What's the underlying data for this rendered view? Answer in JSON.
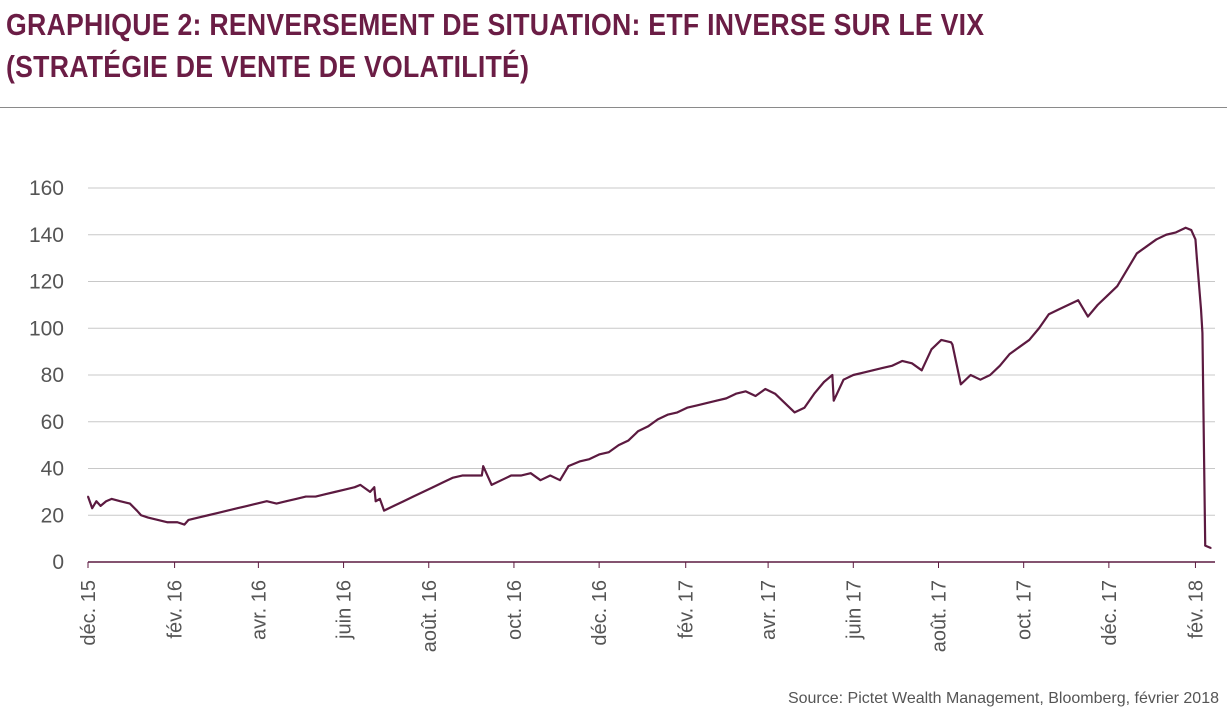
{
  "header": {
    "title_line1": "GRAPHIQUE 2: RENVERSEMENT DE SITUATION: ETF INVERSE SUR LE VIX",
    "title_line2": "(STRATÉGIE DE VENTE DE VOLATILITÉ)"
  },
  "source": "Source: Pictet Wealth Management, Bloomberg, février 2018",
  "colors": {
    "title": "#6b1d45",
    "line": "#5c1a40",
    "grid": "#c8c8c8",
    "text": "#555555"
  },
  "chart_data": {
    "type": "line",
    "title": "GRAPHIQUE 2: RENVERSEMENT DE SITUATION: ETF INVERSE SUR LE VIX (STRATÉGIE DE VENTE DE VOLATILITÉ)",
    "xlabel": "",
    "ylabel": "",
    "ylim": [
      0,
      160
    ],
    "yticks": [
      0,
      20,
      40,
      60,
      80,
      100,
      120,
      140,
      160
    ],
    "xlim": [
      "2015-12-01",
      "2018-02-15"
    ],
    "xtick_labels": [
      "déc. 15",
      "fév. 16",
      "avr. 16",
      "juin 16",
      "août. 16",
      "oct. 16",
      "déc. 16",
      "fév. 17",
      "avr. 17",
      "juin 17",
      "août. 17",
      "oct. 17",
      "déc. 17",
      "fév. 18"
    ],
    "xtick_dates": [
      "2015-12-01",
      "2016-02-01",
      "2016-04-01",
      "2016-06-01",
      "2016-08-01",
      "2016-10-01",
      "2016-12-01",
      "2017-02-01",
      "2017-04-01",
      "2017-06-01",
      "2017-08-01",
      "2017-10-01",
      "2017-12-01",
      "2018-02-01"
    ],
    "grid": "horizontal",
    "series": [
      {
        "x": [
          "2015-12-01",
          "2015-12-04",
          "2015-12-07",
          "2015-12-10",
          "2015-12-14",
          "2015-12-18",
          "2015-12-24",
          "2015-12-31",
          "2016-01-05",
          "2016-01-08",
          "2016-01-13",
          "2016-01-20",
          "2016-01-27",
          "2016-02-03",
          "2016-02-08",
          "2016-02-11",
          "2016-02-18",
          "2016-02-25",
          "2016-03-03",
          "2016-03-10",
          "2016-03-17",
          "2016-03-24",
          "2016-03-31",
          "2016-04-07",
          "2016-04-14",
          "2016-04-21",
          "2016-04-28",
          "2016-05-05",
          "2016-05-12",
          "2016-05-19",
          "2016-05-26",
          "2016-06-02",
          "2016-06-09",
          "2016-06-13",
          "2016-06-20",
          "2016-06-23",
          "2016-06-24",
          "2016-06-27",
          "2016-06-30",
          "2016-07-07",
          "2016-07-14",
          "2016-07-21",
          "2016-07-28",
          "2016-08-04",
          "2016-08-11",
          "2016-08-18",
          "2016-08-25",
          "2016-09-01",
          "2016-09-08",
          "2016-09-09",
          "2016-09-15",
          "2016-09-22",
          "2016-09-29",
          "2016-10-06",
          "2016-10-13",
          "2016-10-20",
          "2016-10-27",
          "2016-11-03",
          "2016-11-09",
          "2016-11-17",
          "2016-11-24",
          "2016-12-01",
          "2016-12-08",
          "2016-12-15",
          "2016-12-22",
          "2016-12-29",
          "2017-01-05",
          "2017-01-12",
          "2017-01-19",
          "2017-01-26",
          "2017-02-02",
          "2017-02-09",
          "2017-02-16",
          "2017-02-23",
          "2017-03-02",
          "2017-03-09",
          "2017-03-16",
          "2017-03-23",
          "2017-03-30",
          "2017-04-06",
          "2017-04-13",
          "2017-04-20",
          "2017-04-27",
          "2017-05-04",
          "2017-05-11",
          "2017-05-17",
          "2017-05-18",
          "2017-05-25",
          "2017-06-01",
          "2017-06-08",
          "2017-06-15",
          "2017-06-22",
          "2017-06-29",
          "2017-07-06",
          "2017-07-13",
          "2017-07-20",
          "2017-07-27",
          "2017-08-03",
          "2017-08-10",
          "2017-08-11",
          "2017-08-17",
          "2017-08-24",
          "2017-08-31",
          "2017-09-07",
          "2017-09-14",
          "2017-09-21",
          "2017-09-28",
          "2017-10-05",
          "2017-10-12",
          "2017-10-19",
          "2017-10-26",
          "2017-11-02",
          "2017-11-09",
          "2017-11-16",
          "2017-11-23",
          "2017-11-30",
          "2017-12-07",
          "2017-12-14",
          "2017-12-21",
          "2017-12-28",
          "2018-01-04",
          "2018-01-11",
          "2018-01-18",
          "2018-01-25",
          "2018-01-29",
          "2018-02-01",
          "2018-02-02",
          "2018-02-05",
          "2018-02-06",
          "2018-02-08",
          "2018-02-12"
        ],
        "values": [
          28,
          23,
          26,
          24,
          26,
          27,
          26,
          25,
          22,
          20,
          19,
          18,
          17,
          17,
          16,
          18,
          19,
          20,
          21,
          22,
          23,
          24,
          25,
          26,
          25,
          26,
          27,
          28,
          28,
          29,
          30,
          31,
          32,
          33,
          30,
          32,
          26,
          27,
          22,
          24,
          26,
          28,
          30,
          32,
          34,
          36,
          37,
          37,
          37,
          41,
          33,
          35,
          37,
          37,
          38,
          35,
          37,
          35,
          41,
          43,
          44,
          46,
          47,
          50,
          52,
          56,
          58,
          61,
          63,
          64,
          66,
          67,
          68,
          69,
          70,
          72,
          73,
          71,
          74,
          72,
          68,
          64,
          66,
          72,
          77,
          80,
          69,
          78,
          80,
          81,
          82,
          83,
          84,
          86,
          85,
          82,
          91,
          95,
          94,
          93,
          76,
          80,
          78,
          80,
          84,
          89,
          92,
          95,
          100,
          106,
          108,
          110,
          112,
          105,
          110,
          114,
          118,
          125,
          132,
          135,
          138,
          140,
          141,
          143,
          142,
          138,
          130,
          108,
          98,
          7,
          6
        ]
      }
    ],
    "source": "Source: Pictet Wealth Management, Bloomberg, février 2018"
  }
}
